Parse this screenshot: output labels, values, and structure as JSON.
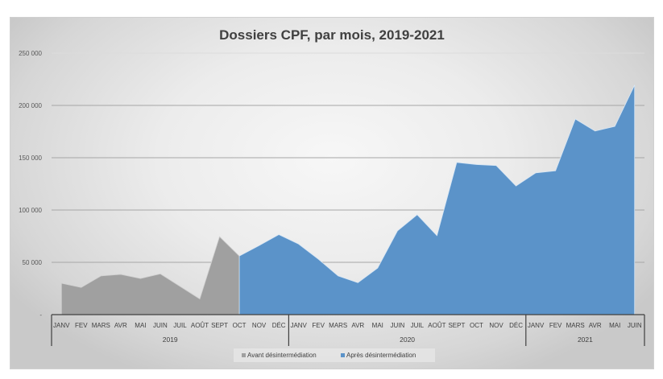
{
  "chart_data": {
    "type": "area",
    "title": "Dossiers CPF, par mois, 2019-2021",
    "xlabel": "",
    "ylabel": "",
    "ylim": [
      0,
      250000
    ],
    "yticks": [
      {
        "value": 0,
        "label": "-"
      },
      {
        "value": 50000,
        "label": "50 000"
      },
      {
        "value": 100000,
        "label": "100 000"
      },
      {
        "value": 150000,
        "label": "150 000"
      },
      {
        "value": 200000,
        "label": "200 000"
      },
      {
        "value": 250000,
        "label": "250 000"
      }
    ],
    "grid": true,
    "legend_position": "bottom",
    "categories": [
      "JANV",
      "FEV",
      "MARS",
      "AVR",
      "MAI",
      "JUIN",
      "JUIL",
      "AOÛT",
      "SEPT",
      "OCT",
      "NOV",
      "DÉC",
      "JANV",
      "FEV",
      "MARS",
      "AVR",
      "MAI",
      "JUIN",
      "JUIL",
      "AOÛT",
      "SEPT",
      "OCT",
      "NOV",
      "DÉC",
      "JANV",
      "FEV",
      "MARS",
      "AVR",
      "MAI",
      "JUIN"
    ],
    "groups": [
      {
        "label": "2019",
        "start": 0,
        "count": 12
      },
      {
        "label": "2020",
        "start": 12,
        "count": 12
      },
      {
        "label": "2021",
        "start": 24,
        "count": 6
      }
    ],
    "series": [
      {
        "name": "Avant désintermédiation",
        "color": "#a0a0a0",
        "values": [
          30000,
          26000,
          37000,
          38500,
          34500,
          39000,
          27000,
          15000,
          74500,
          56000,
          0,
          null,
          null,
          null,
          null,
          null,
          null,
          null,
          null,
          null,
          null,
          null,
          null,
          null,
          null,
          null,
          null,
          null,
          null,
          null
        ]
      },
      {
        "name": "Après désintermédiation",
        "color": "#5b93c9",
        "values": [
          null,
          null,
          null,
          null,
          null,
          null,
          null,
          null,
          null,
          56000,
          66000,
          76500,
          67500,
          53000,
          37000,
          30500,
          44500,
          80000,
          95500,
          75500,
          145500,
          143500,
          142500,
          123000,
          135500,
          137500,
          187000,
          175500,
          180000,
          219500
        ]
      }
    ]
  },
  "legend": {
    "items": [
      {
        "label": "Avant désintermédiation",
        "color": "#a0a0a0"
      },
      {
        "label": "Après désintermédiation",
        "color": "#5b93c9"
      }
    ]
  }
}
